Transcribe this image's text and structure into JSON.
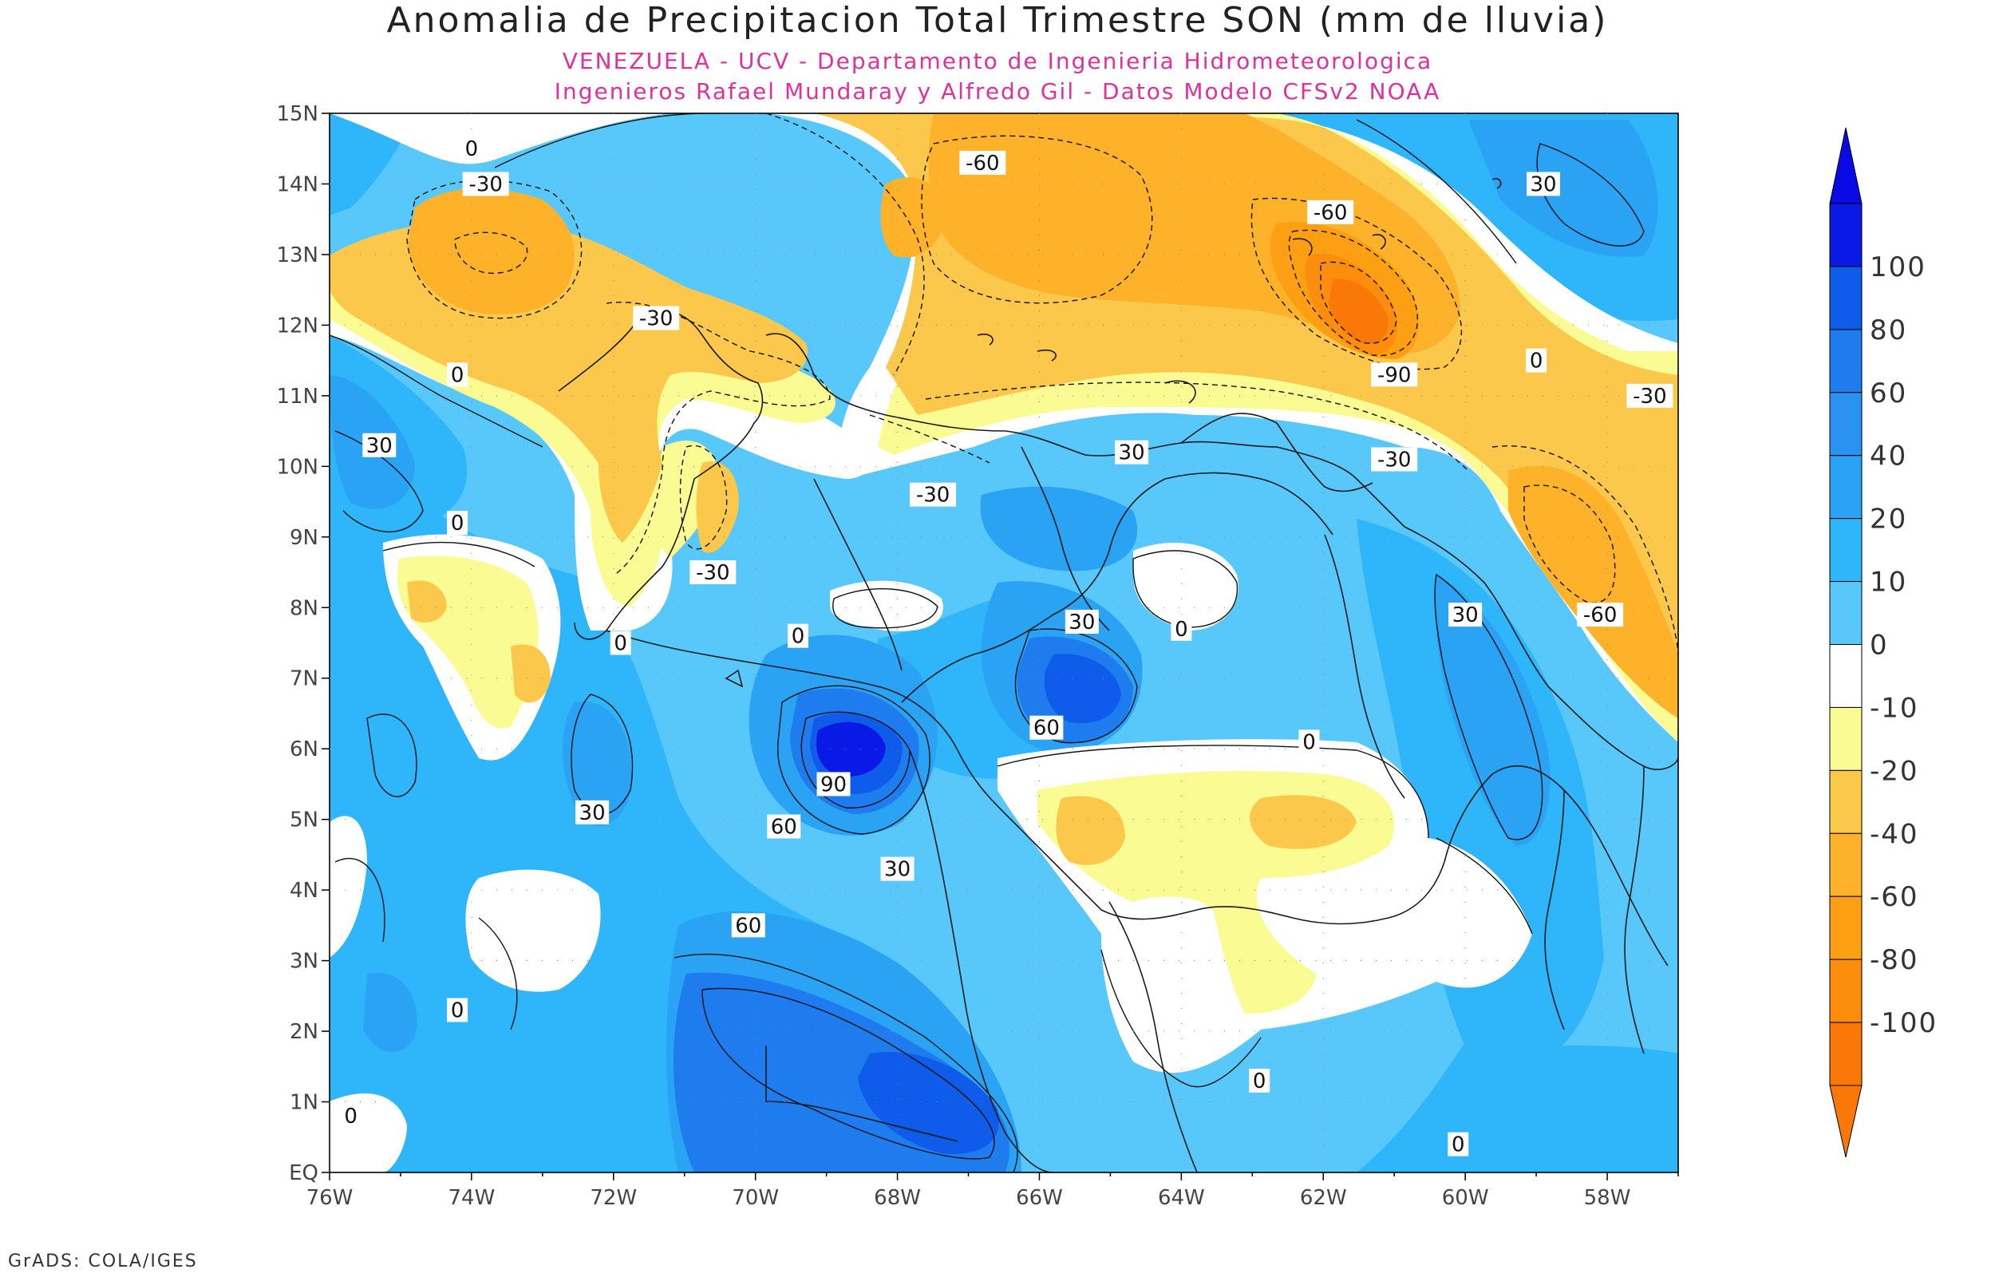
{
  "title": "Anomalia de Precipitacion Total Trimestre SON (mm de lluvia)",
  "subtitle_lines": [
    "VENEZUELA - UCV - Departamento de Ingenieria Hidrometeorologica",
    "Ingenieros Rafael Mundaray y Alfredo Gil - Datos Modelo CFSv2 NOAA"
  ],
  "footer": "GrADS: COLA/IGES",
  "map": {
    "lon_range": [
      -76,
      -57
    ],
    "lat_range": [
      0,
      15
    ],
    "lat_ticks": [
      "15N",
      "14N",
      "13N",
      "12N",
      "11N",
      "10N",
      "9N",
      "8N",
      "7N",
      "6N",
      "5N",
      "4N",
      "3N",
      "2N",
      "1N",
      "EQ"
    ],
    "lon_ticks": [
      "76W",
      "74W",
      "72W",
      "70W",
      "68W",
      "66W",
      "64W",
      "62W",
      "60W",
      "58W"
    ],
    "contour_labels": [
      {
        "text": "0",
        "lon": -74.0,
        "lat": 14.5
      },
      {
        "text": "-30",
        "lon": -73.8,
        "lat": 14.0
      },
      {
        "text": "-60",
        "lon": -66.8,
        "lat": 14.3
      },
      {
        "text": "-60",
        "lon": -61.9,
        "lat": 13.6
      },
      {
        "text": "30",
        "lon": -58.9,
        "lat": 14.0
      },
      {
        "text": "-30",
        "lon": -71.4,
        "lat": 12.1
      },
      {
        "text": "0",
        "lon": -74.2,
        "lat": 11.3
      },
      {
        "text": "-90",
        "lon": -61.0,
        "lat": 11.3
      },
      {
        "text": "0",
        "lon": -59.0,
        "lat": 11.5
      },
      {
        "text": "-30",
        "lon": -57.4,
        "lat": 11.0
      },
      {
        "text": "30",
        "lon": -75.3,
        "lat": 10.3
      },
      {
        "text": "30",
        "lon": -64.7,
        "lat": 10.2
      },
      {
        "text": "-30",
        "lon": -61.0,
        "lat": 10.1
      },
      {
        "text": "-30",
        "lon": -67.5,
        "lat": 9.6
      },
      {
        "text": "0",
        "lon": -74.2,
        "lat": 9.2
      },
      {
        "text": "-30",
        "lon": -70.6,
        "lat": 8.5
      },
      {
        "text": "30",
        "lon": -60.0,
        "lat": 7.9
      },
      {
        "text": "-60",
        "lon": -58.1,
        "lat": 7.9
      },
      {
        "text": "0",
        "lon": -71.9,
        "lat": 7.5
      },
      {
        "text": "0",
        "lon": -69.4,
        "lat": 7.6
      },
      {
        "text": "30",
        "lon": -65.4,
        "lat": 7.8
      },
      {
        "text": "0",
        "lon": -64.0,
        "lat": 7.7
      },
      {
        "text": "60",
        "lon": -65.9,
        "lat": 6.3
      },
      {
        "text": "0",
        "lon": -62.2,
        "lat": 6.1
      },
      {
        "text": "90",
        "lon": -68.9,
        "lat": 5.5
      },
      {
        "text": "30",
        "lon": -72.3,
        "lat": 5.1
      },
      {
        "text": "60",
        "lon": -69.6,
        "lat": 4.9
      },
      {
        "text": "30",
        "lon": -68.0,
        "lat": 4.3
      },
      {
        "text": "60",
        "lon": -70.1,
        "lat": 3.5
      },
      {
        "text": "0",
        "lon": -74.2,
        "lat": 2.3
      },
      {
        "text": "0",
        "lon": -62.9,
        "lat": 1.3
      },
      {
        "text": "0",
        "lon": -75.7,
        "lat": 0.8
      },
      {
        "text": "0",
        "lon": -60.1,
        "lat": 0.4
      }
    ]
  },
  "colorbar": {
    "labels": [
      "100",
      "80",
      "60",
      "40",
      "20",
      "10",
      "0",
      "-10",
      "-20",
      "-40",
      "-60",
      "-80",
      "-100"
    ],
    "colors": [
      "#0a1ae6",
      "#0f5bea",
      "#1e7cee",
      "#2a92f0",
      "#2ba3f5",
      "#2eb5fa",
      "#58c8fb",
      "#ffffff",
      "#fbfb93",
      "#fcc84c",
      "#fdb22a",
      "#fd9f12",
      "#fd8d0c",
      "#f97808"
    ],
    "over_color": "#0a0ae6",
    "under_color": "#f97808"
  }
}
